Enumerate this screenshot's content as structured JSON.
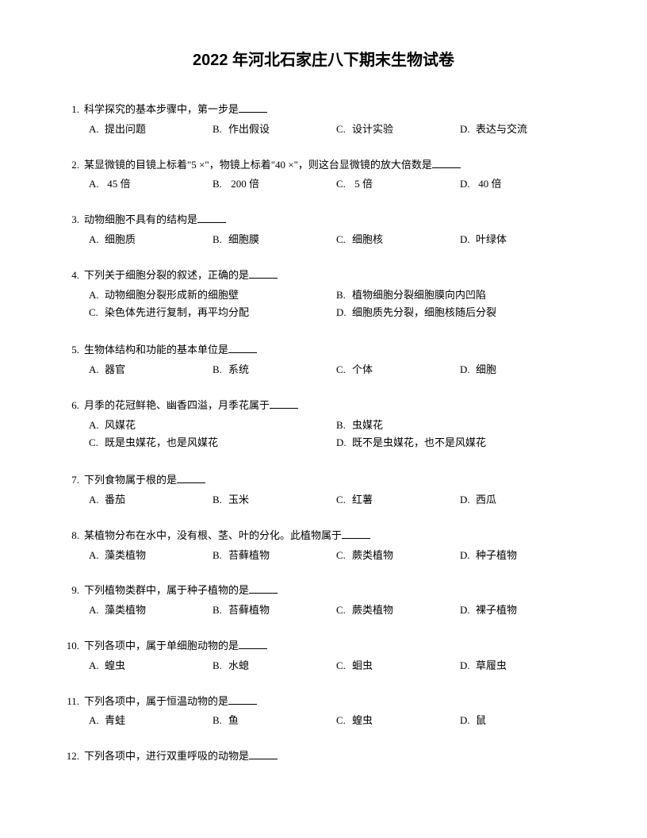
{
  "title": "2022 年河北石家庄八下期末生物试卷",
  "questions": [
    {
      "num": "1.",
      "stem": "科学探究的基本步骤中，第一步是",
      "layout": "4col",
      "options": {
        "A": "提出问题",
        "B": "作出假设",
        "C": "设计实验",
        "D": "表达与交流"
      }
    },
    {
      "num": "2.",
      "stem": "某显微镜的目镜上标着\"5 ×\"，物镜上标着\"40 ×\"，则这台显微镜的放大倍数是",
      "layout": "4col",
      "options": {
        "A": " 45 倍",
        "B": " 200 倍",
        "C": " 5 倍",
        "D": " 40 倍"
      }
    },
    {
      "num": "3.",
      "stem": "动物细胞不具有的结构是",
      "layout": "4col",
      "options": {
        "A": "细胞质",
        "B": "细胞膜",
        "C": "细胞核",
        "D": "叶绿体"
      }
    },
    {
      "num": "4.",
      "stem": "下列关于细胞分裂的叙述，正确的是",
      "layout": "2col",
      "options": {
        "A": "动物细胞分裂形成新的细胞壁",
        "B": "植物细胞分裂细胞膜向内凹陷",
        "C": "染色体先进行复制，再平均分配",
        "D": "细胞质先分裂，细胞核随后分裂"
      }
    },
    {
      "num": "5.",
      "stem": "生物体结构和功能的基本单位是",
      "layout": "4col",
      "options": {
        "A": "器官",
        "B": "系统",
        "C": "个体",
        "D": "细胞"
      }
    },
    {
      "num": "6.",
      "stem": "月季的花冠鲜艳、幽香四溢，月季花属于",
      "layout": "2col",
      "options": {
        "A": "风媒花",
        "B": "虫媒花",
        "C": "既是虫媒花，也是风媒花",
        "D": "既不是虫媒花，也不是风媒花"
      }
    },
    {
      "num": "7.",
      "stem": "下列食物属于根的是",
      "layout": "4col",
      "options": {
        "A": "番茄",
        "B": "玉米",
        "C": "红薯",
        "D": "西瓜"
      }
    },
    {
      "num": "8.",
      "stem": "某植物分布在水中，没有根、茎、叶的分化。此植物属于",
      "layout": "4col",
      "options": {
        "A": "藻类植物",
        "B": "苔藓植物",
        "C": "蕨类植物",
        "D": "种子植物"
      }
    },
    {
      "num": "9.",
      "stem": "下列植物类群中，属于种子植物的是",
      "layout": "4col",
      "options": {
        "A": "藻类植物",
        "B": "苔藓植物",
        "C": "蕨类植物",
        "D": "裸子植物"
      }
    },
    {
      "num": "10.",
      "stem": "下列各项中，属于单细胞动物的是",
      "layout": "4col",
      "options": {
        "A": "蝗虫",
        "B": "水螅",
        "C": "蛔虫",
        "D": "草履虫"
      }
    },
    {
      "num": "11.",
      "stem": "下列各项中，属于恒温动物的是",
      "layout": "4col",
      "options": {
        "A": "青蛙",
        "B": "鱼",
        "C": "蝗虫",
        "D": "鼠"
      }
    },
    {
      "num": "12.",
      "stem": "下列各项中，进行双重呼吸的动物是",
      "layout": "none",
      "options": {}
    }
  ]
}
